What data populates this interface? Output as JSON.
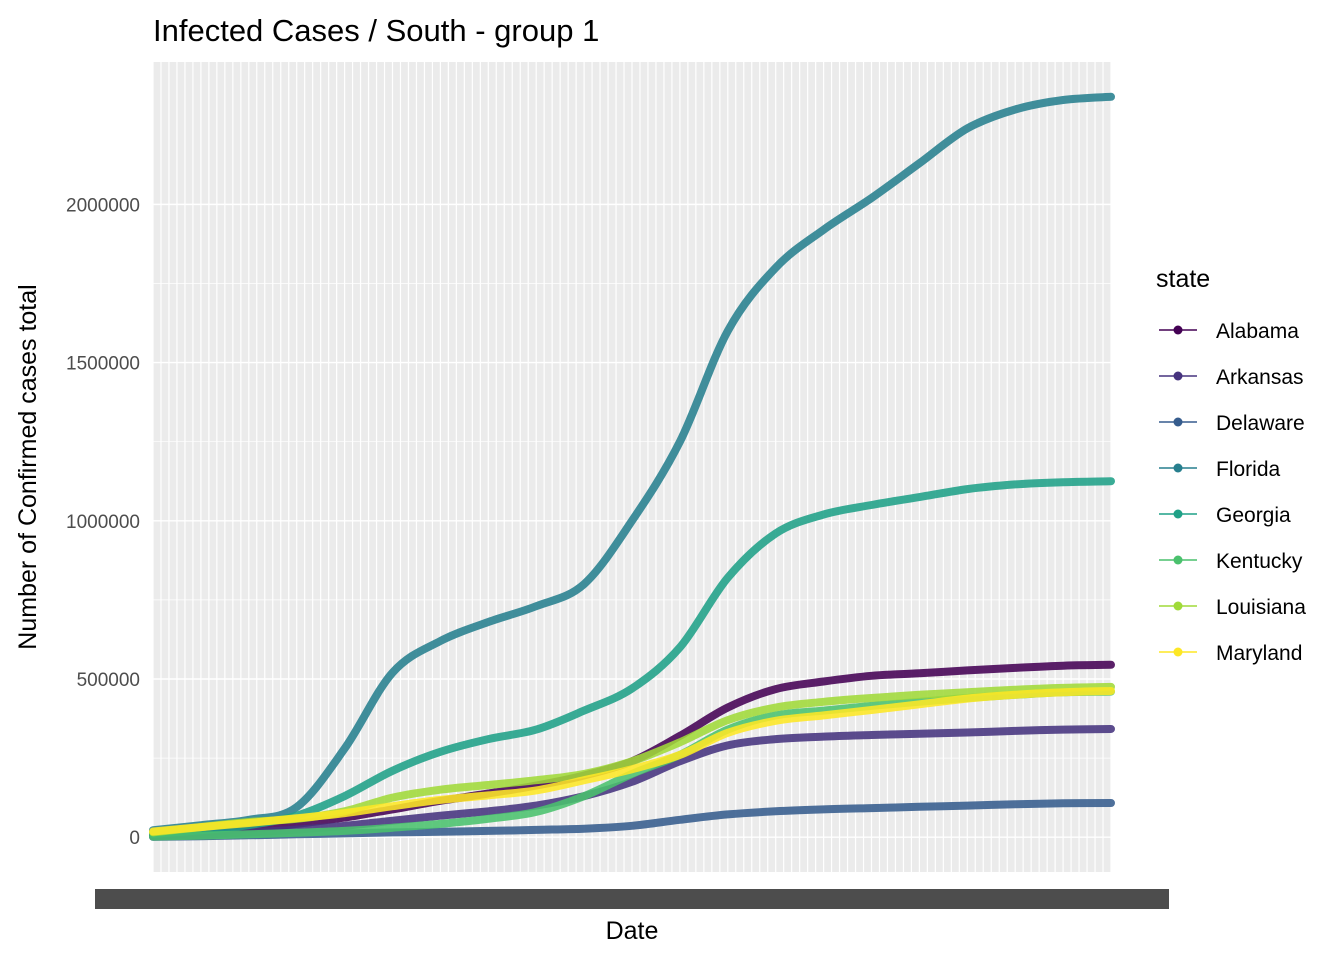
{
  "chart_data": {
    "type": "line",
    "title": "Infected Cases / South - group 1",
    "xlabel": "Date",
    "ylabel": "Number of Confirmed cases total",
    "ylim": [
      -110000,
      2450000
    ],
    "y_ticks": [
      0,
      500000,
      1000000,
      1500000,
      2000000
    ],
    "y_tick_labels": [
      "0",
      "500000",
      "1000000",
      "1500000",
      "2000000"
    ],
    "x_range": [
      0,
      100
    ],
    "grid": true,
    "background": "#ebebeb",
    "legend": {
      "title": "state",
      "position": "right"
    },
    "x": [
      0,
      5,
      10,
      15,
      20,
      25,
      30,
      35,
      40,
      45,
      50,
      55,
      60,
      65,
      70,
      75,
      80,
      85,
      90,
      95,
      100
    ],
    "series": [
      {
        "name": "Alabama",
        "color": "#440154",
        "values": [
          5000,
          15000,
          27000,
          42000,
          62000,
          88000,
          115000,
          138000,
          163000,
          195000,
          240000,
          320000,
          410000,
          468000,
          492000,
          510000,
          518000,
          527000,
          535000,
          542000,
          545000
        ]
      },
      {
        "name": "Arkansas",
        "color": "#46337e",
        "values": [
          3000,
          8000,
          15000,
          24000,
          36000,
          52000,
          68000,
          82000,
          100000,
          130000,
          175000,
          240000,
          290000,
          310000,
          318000,
          323000,
          327000,
          331000,
          336000,
          340000,
          342000
        ]
      },
      {
        "name": "Delaware",
        "color": "#365c8d",
        "values": [
          1000,
          3000,
          6000,
          9000,
          12000,
          15000,
          17000,
          20000,
          23000,
          27000,
          36000,
          55000,
          72000,
          82000,
          88000,
          92000,
          96000,
          100000,
          104000,
          107000,
          108000
        ]
      },
      {
        "name": "Florida",
        "color": "#277f8e",
        "values": [
          22000,
          38000,
          55000,
          95000,
          280000,
          520000,
          620000,
          680000,
          730000,
          800000,
          1000000,
          1250000,
          1600000,
          1800000,
          1920000,
          2020000,
          2130000,
          2240000,
          2300000,
          2330000,
          2340000
        ]
      },
      {
        "name": "Georgia",
        "color": "#1fa187",
        "values": [
          10000,
          22000,
          38000,
          68000,
          130000,
          210000,
          270000,
          310000,
          340000,
          400000,
          470000,
          600000,
          820000,
          960000,
          1020000,
          1050000,
          1075000,
          1100000,
          1115000,
          1122000,
          1125000
        ]
      },
      {
        "name": "Kentucky",
        "color": "#4ac16d",
        "values": [
          2000,
          5000,
          9000,
          14000,
          20000,
          30000,
          42000,
          58000,
          80000,
          130000,
          200000,
          260000,
          340000,
          385000,
          400000,
          415000,
          428000,
          440000,
          450000,
          458000,
          460000
        ]
      },
      {
        "name": "Louisiana",
        "color": "#a0da39",
        "values": [
          15000,
          32000,
          48000,
          58000,
          82000,
          125000,
          150000,
          165000,
          180000,
          200000,
          240000,
          300000,
          370000,
          410000,
          428000,
          440000,
          450000,
          458000,
          466000,
          472000,
          475000
        ]
      },
      {
        "name": "Maryland",
        "color": "#fde725",
        "values": [
          18000,
          32000,
          45000,
          60000,
          76000,
          98000,
          118000,
          132000,
          148000,
          180000,
          215000,
          260000,
          330000,
          368000,
          385000,
          402000,
          420000,
          438000,
          450000,
          458000,
          462000
        ]
      }
    ]
  }
}
